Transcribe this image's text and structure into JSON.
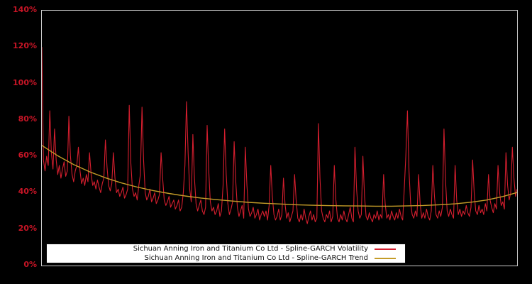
{
  "chart_data": {
    "type": "line",
    "title": "",
    "xlabel": "",
    "ylabel": "",
    "ylim": [
      0,
      140
    ],
    "y_ticks": [
      "0%",
      "20%",
      "40%",
      "60%",
      "80%",
      "100%",
      "120%",
      "140%"
    ],
    "grid": false,
    "legend_position": "bottom-center",
    "x_count": 300,
    "series": [
      {
        "name": "Sichuan Anning Iron and Titanium Co Ltd - Spline-GARCH Volatility",
        "color": "#d41e2e",
        "unit": "%",
        "values": [
          120,
          58,
          52,
          60,
          55,
          85,
          62,
          53,
          75,
          58,
          50,
          55,
          48,
          53,
          57,
          49,
          52,
          82,
          60,
          50,
          46,
          52,
          55,
          65,
          52,
          45,
          48,
          44,
          50,
          46,
          62,
          50,
          44,
          46,
          42,
          47,
          43,
          40,
          45,
          48,
          69,
          54,
          44,
          41,
          45,
          62,
          48,
          40,
          42,
          38,
          40,
          43,
          37,
          39,
          42,
          88,
          56,
          42,
          38,
          40,
          36,
          44,
          50,
          87,
          58,
          40,
          36,
          38,
          42,
          35,
          37,
          40,
          34,
          36,
          39,
          62,
          48,
          36,
          33,
          35,
          38,
          32,
          34,
          36,
          31,
          33,
          36,
          30,
          32,
          40,
          55,
          90,
          62,
          42,
          35,
          72,
          48,
          34,
          30,
          33,
          36,
          30,
          28,
          32,
          77,
          52,
          35,
          30,
          32,
          28,
          30,
          34,
          27,
          30,
          44,
          75,
          50,
          34,
          28,
          31,
          35,
          68,
          46,
          32,
          27,
          30,
          33,
          26,
          65,
          44,
          31,
          27,
          29,
          32,
          26,
          28,
          31,
          25,
          28,
          30,
          27,
          30,
          25,
          33,
          55,
          38,
          28,
          25,
          27,
          31,
          25,
          28,
          48,
          34,
          26,
          29,
          24,
          27,
          30,
          50,
          36,
          26,
          24,
          28,
          25,
          31,
          26,
          23,
          27,
          30,
          25,
          28,
          24,
          26,
          78,
          48,
          30,
          26,
          24,
          28,
          26,
          30,
          24,
          27,
          55,
          36,
          26,
          24,
          28,
          25,
          30,
          26,
          24,
          28,
          32,
          26,
          24,
          65,
          42,
          30,
          26,
          28,
          60,
          38,
          27,
          25,
          29,
          26,
          24,
          28,
          26,
          30,
          25,
          28,
          26,
          50,
          34,
          26,
          28,
          25,
          30,
          27,
          25,
          29,
          26,
          31,
          27,
          25,
          42,
          60,
          85,
          52,
          34,
          28,
          26,
          30,
          27,
          50,
          34,
          26,
          29,
          26,
          31,
          27,
          25,
          30,
          55,
          38,
          28,
          26,
          30,
          27,
          32,
          75,
          46,
          30,
          27,
          31,
          28,
          26,
          55,
          36,
          28,
          31,
          27,
          30,
          28,
          33,
          29,
          27,
          32,
          58,
          40,
          30,
          28,
          33,
          29,
          31,
          28,
          34,
          30,
          50,
          36,
          32,
          29,
          34,
          31,
          55,
          40,
          33,
          35,
          31,
          62,
          44,
          36,
          40,
          65,
          48,
          38,
          42
        ]
      },
      {
        "name": "Sichuan Anning Iron and Titanium Co Ltd - Spline-GARCH Trend",
        "color": "#c49c28",
        "unit": "%",
        "x": [
          0,
          10,
          20,
          30,
          40,
          50,
          60,
          70,
          80,
          90,
          100,
          110,
          120,
          130,
          140,
          150,
          160,
          170,
          180,
          190,
          200,
          210,
          220,
          230,
          240,
          250,
          260,
          270,
          280,
          290,
          299
        ],
        "values": [
          66.0,
          60.3,
          55.5,
          51.5,
          48.2,
          45.4,
          43.1,
          41.2,
          39.6,
          38.2,
          37.1,
          36.2,
          35.4,
          34.7,
          34.2,
          33.8,
          33.4,
          33.1,
          32.9,
          32.8,
          32.7,
          32.6,
          32.6,
          32.8,
          33.0,
          33.4,
          33.9,
          34.8,
          36.0,
          37.9,
          40.1
        ]
      }
    ]
  },
  "axis": {
    "tick_color": "#c81526"
  },
  "frame": {
    "border_color": "#c9c9c9",
    "background": "#000000"
  },
  "legend": {
    "items": [
      {
        "label": "Sichuan Anning Iron and Titanium Co Ltd - Spline-GARCH Volatility",
        "color": "#d41e2e"
      },
      {
        "label": "Sichuan Anning Iron and Titanium Co Ltd - Spline-GARCH Trend",
        "color": "#c49c28"
      }
    ]
  }
}
